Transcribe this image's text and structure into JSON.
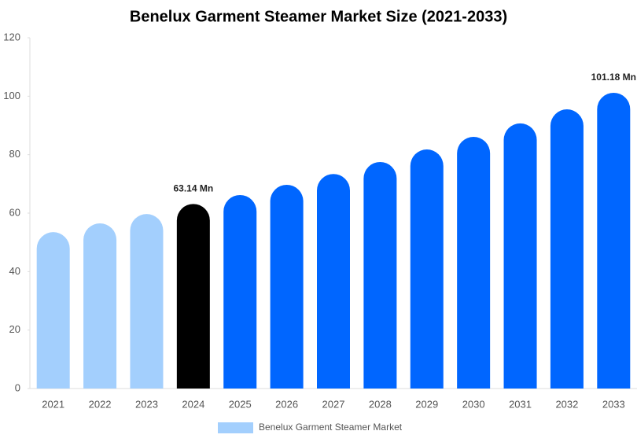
{
  "chart_data": {
    "type": "bar",
    "title": "Benelux Garment Steamer Market Size (2021-2033)",
    "categories": [
      "2021",
      "2022",
      "2023",
      "2024",
      "2025",
      "2026",
      "2027",
      "2028",
      "2029",
      "2030",
      "2031",
      "2032",
      "2033"
    ],
    "series": [
      {
        "name": "Benelux Garment Steamer Market",
        "color": "#a3cffd",
        "colors": [
          "#a3cffd",
          "#a3cffd",
          "#a3cffd",
          "#000000",
          "#0066ff",
          "#0066ff",
          "#0066ff",
          "#0066ff",
          "#0066ff",
          "#0066ff",
          "#0066ff",
          "#0066ff",
          "#0066ff"
        ],
        "values": [
          53.5,
          56.5,
          59.7,
          63.14,
          66.2,
          69.7,
          73.4,
          77.5,
          81.8,
          86.1,
          90.7,
          95.5,
          101.18
        ],
        "value_labels": [
          null,
          null,
          null,
          "63.14 Mn",
          null,
          null,
          null,
          null,
          null,
          null,
          null,
          null,
          "101.18 Mn"
        ]
      }
    ],
    "ylim": [
      0,
      120
    ],
    "yticks": [
      0,
      20,
      40,
      60,
      80,
      100,
      120
    ],
    "grid": false,
    "legend": "bottom"
  }
}
